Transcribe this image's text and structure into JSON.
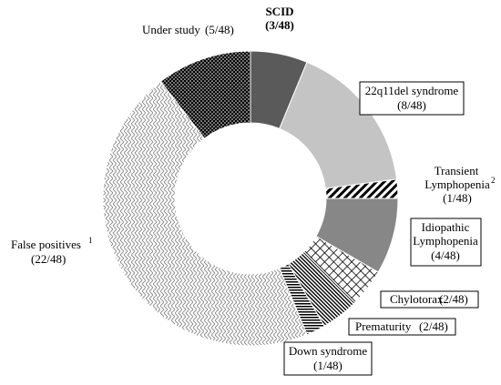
{
  "chart_data": {
    "type": "pie",
    "variant": "donut",
    "total": 48,
    "slices": [
      {
        "label": "SCID",
        "count": "(3/48)",
        "value": 3,
        "bold": true,
        "fill": "#5a5a5a",
        "pattern": "solid"
      },
      {
        "label": "22q11del syndrome",
        "count": "(8/48)",
        "value": 8,
        "boxed": true,
        "fill": "#c4c4c4",
        "pattern": "solid"
      },
      {
        "label": "Transient Lymphopenia",
        "sup": "2",
        "count": "(1/48)",
        "value": 1,
        "fill": "#000000",
        "pattern": "diagonal-stripes"
      },
      {
        "label": "Idiopathic Lymphopenia",
        "count": "(4/48)",
        "value": 4,
        "boxed": true,
        "fill": "#878787",
        "pattern": "solid"
      },
      {
        "label": "Chylotorax",
        "count": "(2/48)",
        "value": 2,
        "boxed": true,
        "fill": "#000000",
        "pattern": "crosshatch"
      },
      {
        "label": "Prematurity",
        "count": "(2/48)",
        "value": 2,
        "boxed": true,
        "fill": "#000000",
        "pattern": "dense-diagonal"
      },
      {
        "label": "Down syndrome",
        "count": "(1/48)",
        "value": 1,
        "boxed": true,
        "fill": "#000000",
        "pattern": "horizontal-lines"
      },
      {
        "label": "False positives",
        "sup": "1",
        "count": "(22/48)",
        "value": 22,
        "fill": "#8a8a8a",
        "pattern": "weave"
      },
      {
        "label": "Under study",
        "count": "(5/48)",
        "value": 5,
        "fill": "#000000",
        "pattern": "dots"
      }
    ]
  }
}
